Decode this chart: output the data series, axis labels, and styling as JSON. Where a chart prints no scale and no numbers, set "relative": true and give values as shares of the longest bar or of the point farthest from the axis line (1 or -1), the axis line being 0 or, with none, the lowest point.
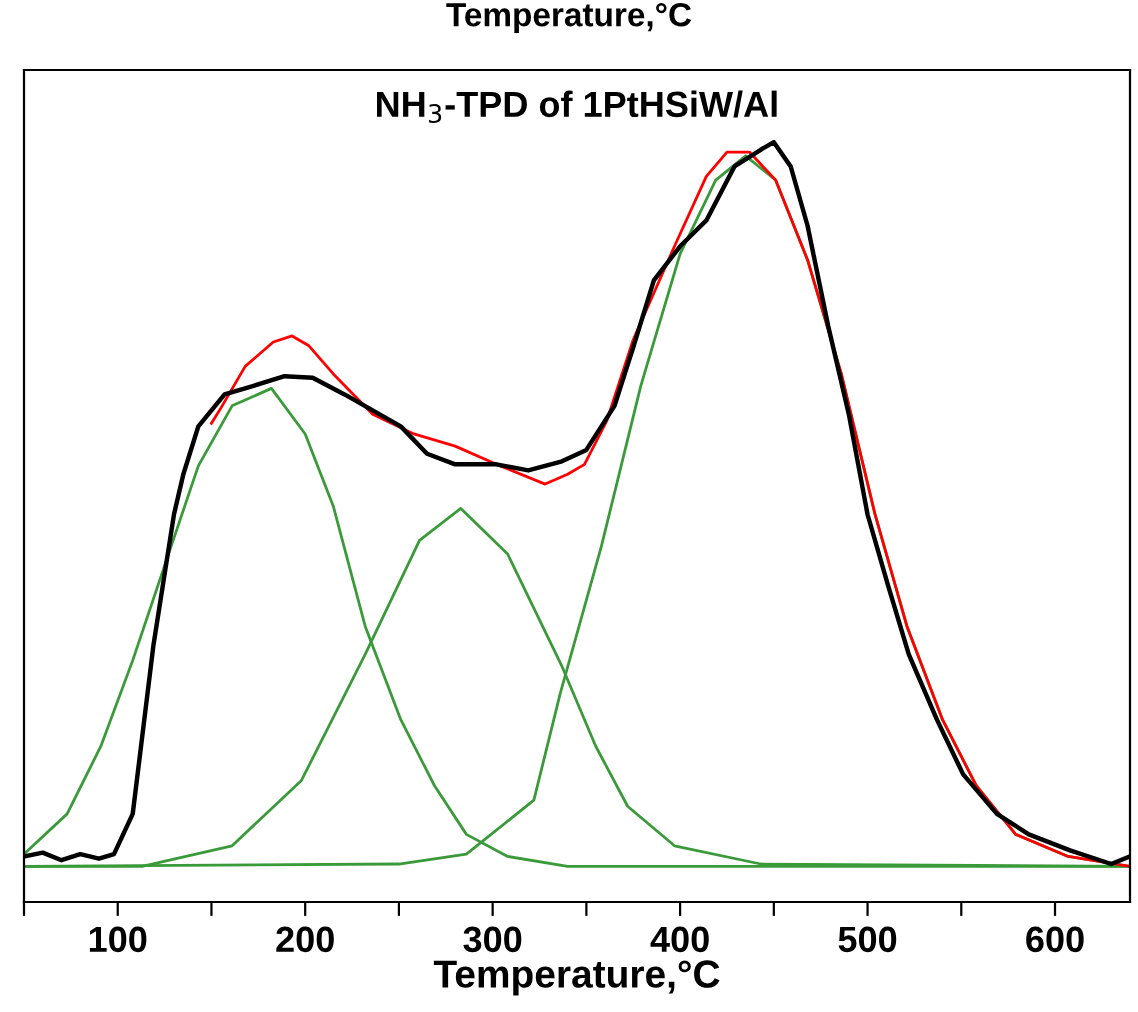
{
  "chart_data": {
    "type": "line",
    "title": "NH$_{3}$-TPD of 1PtHSiW/Al",
    "xlabel": "Temperature,°C",
    "annotations": [
      "Temperature,°C"
    ],
    "relative": true,
    "tick_labels": "x",
    "grid": false,
    "legend": false,
    "marker": "none",
    "line_style": "solid",
    "xlim": [
      50,
      640
    ],
    "xticks": [
      {
        "value": 50,
        "label": null
      },
      100,
      {
        "value": 150,
        "label": null
      },
      200,
      {
        "value": 250,
        "label": null
      },
      300,
      {
        "value": 350,
        "label": null
      },
      400,
      {
        "value": 450,
        "label": null
      },
      500,
      {
        "value": 550,
        "label": null
      },
      600
    ],
    "series": [
      {
        "color": "#3a9a3a",
        "x": [
          50,
          73,
          91,
          108,
          126,
          143,
          161,
          182,
          200,
          215,
          232,
          251,
          269,
          286,
          308,
          340,
          640
        ],
        "values": [
          0.063,
          0.116,
          0.205,
          0.318,
          0.45,
          0.574,
          0.653,
          0.676,
          0.616,
          0.521,
          0.363,
          0.24,
          0.153,
          0.089,
          0.06,
          0.047,
          0.047
        ]
      },
      {
        "color": "#3a9a3a",
        "x": [
          50,
          113,
          161,
          198,
          232,
          261,
          283,
          308,
          337,
          355,
          372,
          397,
          443,
          640
        ],
        "values": [
          0.047,
          0.047,
          0.074,
          0.16,
          0.326,
          0.476,
          0.518,
          0.458,
          0.31,
          0.205,
          0.126,
          0.074,
          0.05,
          0.047
        ]
      },
      {
        "color": "#3a9a3a",
        "x": [
          50,
          250,
          286,
          322,
          336,
          358,
          379,
          400,
          419,
          435,
          451,
          468,
          486,
          504,
          521,
          540,
          558,
          579,
          607,
          640
        ],
        "values": [
          0.047,
          0.05,
          0.063,
          0.134,
          0.274,
          0.468,
          0.679,
          0.853,
          0.95,
          0.982,
          0.95,
          0.845,
          0.695,
          0.51,
          0.363,
          0.24,
          0.153,
          0.089,
          0.06,
          0.047
        ]
      },
      {
        "color": "#ff0000",
        "x": [
          150,
          155,
          168,
          183,
          193,
          202,
          215,
          236,
          258,
          280,
          302,
          328,
          340,
          349,
          361,
          375,
          397,
          414,
          425,
          437,
          451,
          468,
          486,
          504,
          521,
          540,
          558,
          579,
          607,
          640
        ],
        "values": [
          0.63,
          0.65,
          0.705,
          0.737,
          0.745,
          0.732,
          0.695,
          0.642,
          0.616,
          0.6,
          0.576,
          0.55,
          0.563,
          0.576,
          0.634,
          0.74,
          0.863,
          0.955,
          0.987,
          0.987,
          0.95,
          0.845,
          0.695,
          0.51,
          0.363,
          0.24,
          0.153,
          0.089,
          0.06,
          0.047
        ]
      },
      {
        "color": "#000000",
        "x": [
          50,
          60,
          70,
          80,
          90,
          98,
          108,
          119,
          130,
          135,
          143,
          157,
          172,
          189,
          204,
          221,
          236,
          251,
          265,
          280,
          302,
          319,
          337,
          350,
          365,
          375,
          386,
          400,
          414,
          429,
          443,
          450,
          459,
          468,
          479,
          490,
          500,
          511,
          522,
          537,
          551,
          569,
          586,
          608,
          630,
          640
        ],
        "values": [
          0.06,
          0.065,
          0.055,
          0.063,
          0.057,
          0.063,
          0.116,
          0.337,
          0.51,
          0.563,
          0.626,
          0.668,
          0.679,
          0.692,
          0.69,
          0.668,
          0.647,
          0.626,
          0.59,
          0.576,
          0.576,
          0.568,
          0.58,
          0.595,
          0.653,
          0.73,
          0.818,
          0.863,
          0.897,
          0.968,
          0.99,
          1.0,
          0.968,
          0.89,
          0.758,
          0.642,
          0.51,
          0.416,
          0.326,
          0.24,
          0.168,
          0.116,
          0.089,
          0.068,
          0.05,
          0.06
        ]
      }
    ]
  }
}
